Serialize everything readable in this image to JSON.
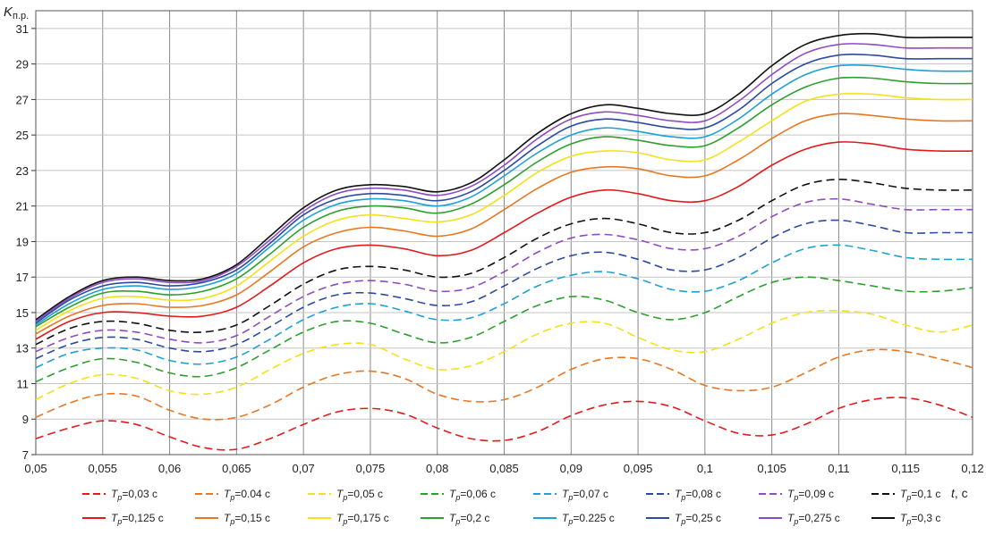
{
  "chart_data": {
    "type": "line",
    "ylabel": "K",
    "ylabel_sub": "п.р.",
    "xlabel": "t",
    "xlabel_unit": ", с",
    "xlim": [
      0.05,
      0.12
    ],
    "ylim": [
      7,
      32
    ],
    "x_ticks": [
      "0,05",
      "0,055",
      "0,06",
      "0,065",
      "0,07",
      "0,075",
      "0,08",
      "0,085",
      "0,09",
      "0,095",
      "0,1",
      "0,105",
      "0,11",
      "0,115",
      "0,12"
    ],
    "y_ticks": [
      "7",
      "9",
      "11",
      "13",
      "15",
      "17",
      "19",
      "21",
      "23",
      "25",
      "27",
      "29",
      "31"
    ],
    "grid": true,
    "legend_position": "bottom",
    "x": [
      0.05,
      0.0525,
      0.055,
      0.0575,
      0.06,
      0.0625,
      0.065,
      0.0675,
      0.07,
      0.0725,
      0.075,
      0.0775,
      0.08,
      0.0825,
      0.085,
      0.0875,
      0.09,
      0.0925,
      0.095,
      0.0975,
      0.1,
      0.1025,
      0.105,
      0.1075,
      0.11,
      0.1125,
      0.115,
      0.1175,
      0.12
    ],
    "series": [
      {
        "name": "Tp=0,03 с",
        "color": "#e31a1c",
        "dashed": true,
        "values": [
          7.9,
          8.5,
          8.9,
          8.7,
          8.0,
          7.4,
          7.3,
          7.9,
          8.7,
          9.4,
          9.6,
          9.3,
          8.5,
          7.9,
          7.8,
          8.3,
          9.2,
          9.8,
          10.0,
          9.7,
          8.9,
          8.2,
          8.1,
          8.7,
          9.6,
          10.1,
          10.2,
          9.8,
          9.1
        ]
      },
      {
        "name": "Tp=0.04 с",
        "color": "#e87722",
        "dashed": true,
        "values": [
          9.1,
          9.9,
          10.4,
          10.3,
          9.5,
          9.0,
          9.1,
          9.8,
          10.8,
          11.5,
          11.7,
          11.3,
          10.4,
          10.0,
          10.1,
          10.8,
          11.8,
          12.4,
          12.4,
          11.8,
          10.9,
          10.6,
          10.8,
          11.6,
          12.5,
          12.9,
          12.8,
          12.4,
          11.9
        ]
      },
      {
        "name": "Tp=0,05 с",
        "color": "#f2e11b",
        "dashed": true,
        "values": [
          10.1,
          11.0,
          11.5,
          11.3,
          10.6,
          10.4,
          10.8,
          11.8,
          12.7,
          13.2,
          13.2,
          12.4,
          11.8,
          12.0,
          12.8,
          13.8,
          14.4,
          14.4,
          13.6,
          12.9,
          12.8,
          13.5,
          14.4,
          15.0,
          15.1,
          14.9,
          14.3,
          13.9,
          14.3
        ]
      },
      {
        "name": "Tp=0,06 с",
        "color": "#2ca02c",
        "dashed": true,
        "values": [
          11.1,
          11.9,
          12.4,
          12.2,
          11.6,
          11.4,
          11.9,
          12.9,
          13.9,
          14.5,
          14.4,
          13.8,
          13.3,
          13.6,
          14.5,
          15.4,
          15.9,
          15.7,
          15.0,
          14.6,
          15.0,
          15.9,
          16.7,
          17.0,
          16.8,
          16.5,
          16.2,
          16.2,
          16.4
        ]
      },
      {
        "name": "Tp=0,07 с",
        "color": "#1da1d6",
        "dashed": true,
        "values": [
          11.9,
          12.7,
          13.0,
          12.9,
          12.3,
          12.1,
          12.5,
          13.5,
          14.6,
          15.3,
          15.5,
          15.1,
          14.6,
          14.7,
          15.5,
          16.5,
          17.1,
          17.3,
          16.9,
          16.3,
          16.2,
          16.8,
          17.8,
          18.6,
          18.8,
          18.5,
          18.1,
          18.0,
          18.0
        ]
      },
      {
        "name": "Tp=0,08 с",
        "color": "#2c4ba0",
        "dashed": true,
        "values": [
          12.4,
          13.2,
          13.6,
          13.5,
          13.0,
          12.8,
          13.2,
          14.2,
          15.3,
          16.0,
          16.1,
          15.8,
          15.4,
          15.6,
          16.5,
          17.5,
          18.2,
          18.4,
          18.0,
          17.4,
          17.4,
          18.1,
          19.2,
          20.0,
          20.2,
          19.9,
          19.5,
          19.5,
          19.5
        ]
      },
      {
        "name": "Tp=0,09 с",
        "color": "#8e4bc2",
        "dashed": true,
        "values": [
          12.8,
          13.6,
          14.0,
          13.9,
          13.5,
          13.3,
          13.7,
          14.8,
          15.9,
          16.6,
          16.8,
          16.6,
          16.2,
          16.4,
          17.3,
          18.4,
          19.2,
          19.4,
          19.1,
          18.6,
          18.6,
          19.3,
          20.4,
          21.2,
          21.4,
          21.1,
          20.8,
          20.8,
          20.8
        ]
      },
      {
        "name": "Tp=0,1 с",
        "color": "#111111",
        "dashed": true,
        "values": [
          13.2,
          14.1,
          14.5,
          14.4,
          14.0,
          13.9,
          14.3,
          15.4,
          16.6,
          17.4,
          17.6,
          17.4,
          17.0,
          17.2,
          18.1,
          19.2,
          20.0,
          20.3,
          20.0,
          19.5,
          19.5,
          20.2,
          21.3,
          22.2,
          22.5,
          22.3,
          22.0,
          21.9,
          21.9
        ]
      },
      {
        "name": "Tp=0,125 с",
        "color": "#e31a1c",
        "dashed": false,
        "values": [
          13.5,
          14.5,
          15.0,
          15.0,
          14.8,
          14.8,
          15.3,
          16.5,
          17.8,
          18.6,
          18.8,
          18.6,
          18.2,
          18.5,
          19.5,
          20.6,
          21.5,
          21.9,
          21.7,
          21.3,
          21.3,
          22.1,
          23.3,
          24.2,
          24.6,
          24.5,
          24.2,
          24.1,
          24.1
        ]
      },
      {
        "name": "Tp=0,15 с",
        "color": "#e87722",
        "dashed": false,
        "values": [
          13.8,
          14.8,
          15.4,
          15.5,
          15.3,
          15.4,
          16.0,
          17.3,
          18.7,
          19.5,
          19.8,
          19.6,
          19.3,
          19.7,
          20.8,
          22.0,
          22.9,
          23.2,
          23.1,
          22.7,
          22.7,
          23.6,
          24.8,
          25.8,
          26.2,
          26.1,
          25.9,
          25.8,
          25.8
        ]
      },
      {
        "name": "Tp=0,175 с",
        "color": "#f2e11b",
        "dashed": false,
        "values": [
          14.0,
          15.1,
          15.8,
          15.9,
          15.7,
          15.8,
          16.5,
          17.9,
          19.3,
          20.2,
          20.5,
          20.3,
          20.1,
          20.5,
          21.6,
          22.9,
          23.8,
          24.1,
          24.0,
          23.6,
          23.6,
          24.6,
          25.8,
          26.9,
          27.3,
          27.3,
          27.1,
          27.0,
          27.0
        ]
      },
      {
        "name": "Tp=0,2 с",
        "color": "#2ca02c",
        "dashed": false,
        "values": [
          14.2,
          15.3,
          16.1,
          16.2,
          16.0,
          16.2,
          16.9,
          18.3,
          19.8,
          20.7,
          21.0,
          20.9,
          20.6,
          21.1,
          22.2,
          23.5,
          24.5,
          24.9,
          24.7,
          24.4,
          24.4,
          25.4,
          26.7,
          27.7,
          28.2,
          28.2,
          28.0,
          27.9,
          27.9
        ]
      },
      {
        "name": "Tp=0.225 с",
        "color": "#1da1d6",
        "dashed": false,
        "values": [
          14.3,
          15.5,
          16.3,
          16.5,
          16.3,
          16.5,
          17.2,
          18.7,
          20.2,
          21.1,
          21.4,
          21.3,
          21.0,
          21.5,
          22.7,
          24.0,
          25.0,
          25.4,
          25.2,
          24.9,
          24.9,
          25.9,
          27.3,
          28.4,
          28.9,
          28.9,
          28.7,
          28.6,
          28.6
        ]
      },
      {
        "name": "Tp=0,25 с",
        "color": "#2c4ba0",
        "dashed": false,
        "values": [
          14.4,
          15.7,
          16.5,
          16.7,
          16.5,
          16.7,
          17.4,
          18.9,
          20.5,
          21.4,
          21.7,
          21.6,
          21.3,
          21.8,
          23.0,
          24.4,
          25.5,
          25.9,
          25.7,
          25.4,
          25.4,
          26.4,
          27.9,
          29.0,
          29.5,
          29.5,
          29.3,
          29.3,
          29.3
        ]
      },
      {
        "name": "Tp=0,275 с",
        "color": "#8e4bc2",
        "dashed": false,
        "values": [
          14.5,
          15.8,
          16.7,
          16.9,
          16.7,
          16.8,
          17.6,
          19.1,
          20.7,
          21.7,
          22.0,
          21.9,
          21.6,
          22.1,
          23.3,
          24.8,
          25.9,
          26.3,
          26.1,
          25.8,
          25.8,
          26.9,
          28.4,
          29.6,
          30.1,
          30.1,
          29.9,
          29.9,
          29.9
        ]
      },
      {
        "name": "Tp=0,3 с",
        "color": "#111111",
        "dashed": false,
        "values": [
          14.6,
          15.9,
          16.8,
          17.0,
          16.8,
          16.9,
          17.7,
          19.3,
          20.9,
          21.9,
          22.2,
          22.1,
          21.8,
          22.3,
          23.6,
          25.1,
          26.2,
          26.7,
          26.5,
          26.2,
          26.2,
          27.3,
          28.9,
          30.1,
          30.6,
          30.7,
          30.5,
          30.5,
          30.5
        ]
      }
    ],
    "legend_labels": [
      {
        "sym": "T",
        "sub": "р",
        "rest": "=0,03 с"
      },
      {
        "sym": "T",
        "sub": "р",
        "rest": "=0.04 с"
      },
      {
        "sym": "T",
        "sub": "р",
        "rest": "=0,05 с"
      },
      {
        "sym": "T",
        "sub": "р",
        "rest": "=0,06 с"
      },
      {
        "sym": "T",
        "sub": "р",
        "rest": "=0,07 с"
      },
      {
        "sym": "T",
        "sub": "р",
        "rest": "=0,08 с"
      },
      {
        "sym": "T",
        "sub": "р",
        "rest": "=0,09 с"
      },
      {
        "sym": "T",
        "sub": "р",
        "rest": "=0,1 с"
      },
      {
        "sym": "T",
        "sub": "р",
        "rest": "=0,125 с"
      },
      {
        "sym": "T",
        "sub": "р",
        "rest": "=0,15 с"
      },
      {
        "sym": "T",
        "sub": "р",
        "rest": "=0,175 с"
      },
      {
        "sym": "T",
        "sub": "р",
        "rest": "=0,2 с"
      },
      {
        "sym": "T",
        "sub": "р",
        "rest": "=0.225 с"
      },
      {
        "sym": "T",
        "sub": "р",
        "rest": "=0,25 с"
      },
      {
        "sym": "T",
        "sub": "р",
        "rest": "=0,275 с"
      },
      {
        "sym": "T",
        "sub": "р",
        "rest": "=0,3 с"
      }
    ]
  }
}
